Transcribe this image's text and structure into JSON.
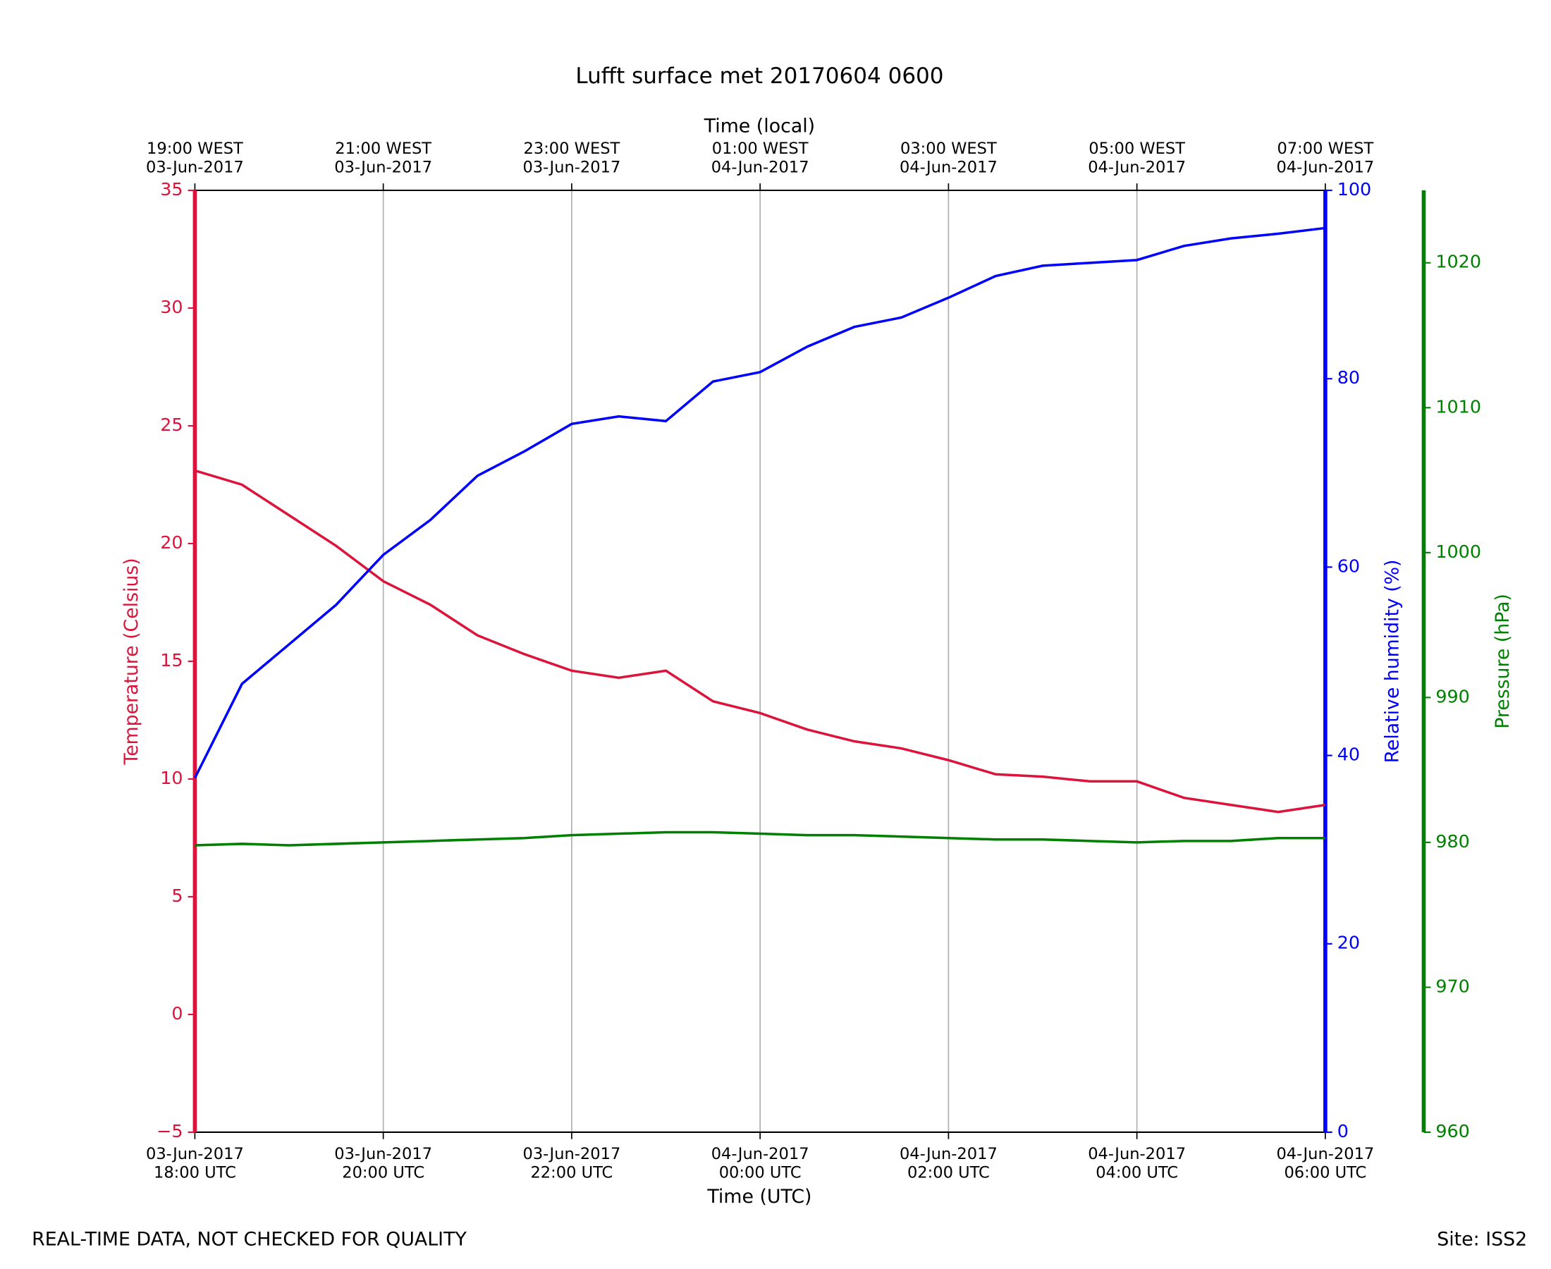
{
  "chart_data": {
    "type": "line",
    "title": "Lufft surface met 20170604 0600",
    "xlabel": "Time (UTC)",
    "x2label": "Time (local)",
    "ylabel": "Temperature (Celsius)",
    "y2label": "Relative humidity (%)",
    "y3label": "Pressure (hPa)",
    "footer_left": "REAL-TIME DATA, NOT CHECKED FOR QUALITY",
    "footer_right": "Site: ISS2",
    "grid": true,
    "x": [
      0,
      0.5,
      1,
      1.5,
      2,
      2.5,
      3,
      3.5,
      4,
      4.5,
      5,
      5.5,
      6,
      6.5,
      7,
      7.5,
      8,
      8.5,
      9,
      9.5,
      10,
      10.5,
      11,
      11.5,
      12
    ],
    "xlim": [
      0,
      12
    ],
    "xticks": [
      {
        "value": 0,
        "label": [
          "03-Jun-2017",
          "18:00 UTC"
        ]
      },
      {
        "value": 2,
        "label": [
          "03-Jun-2017",
          "20:00 UTC"
        ]
      },
      {
        "value": 4,
        "label": [
          "03-Jun-2017",
          "22:00 UTC"
        ]
      },
      {
        "value": 6,
        "label": [
          "04-Jun-2017",
          "00:00 UTC"
        ]
      },
      {
        "value": 8,
        "label": [
          "04-Jun-2017",
          "02:00 UTC"
        ]
      },
      {
        "value": 10,
        "label": [
          "04-Jun-2017",
          "04:00 UTC"
        ]
      },
      {
        "value": 12,
        "label": [
          "04-Jun-2017",
          "06:00 UTC"
        ]
      }
    ],
    "x2ticks": [
      {
        "value": 0,
        "label": [
          "19:00 WEST",
          "03-Jun-2017"
        ]
      },
      {
        "value": 2,
        "label": [
          "21:00 WEST",
          "03-Jun-2017"
        ]
      },
      {
        "value": 4,
        "label": [
          "23:00 WEST",
          "03-Jun-2017"
        ]
      },
      {
        "value": 6,
        "label": [
          "01:00 WEST",
          "04-Jun-2017"
        ]
      },
      {
        "value": 8,
        "label": [
          "03:00 WEST",
          "04-Jun-2017"
        ]
      },
      {
        "value": 10,
        "label": [
          "05:00 WEST",
          "04-Jun-2017"
        ]
      },
      {
        "value": 12,
        "label": [
          "07:00 WEST",
          "04-Jun-2017"
        ]
      }
    ],
    "ylim": [
      -5,
      35
    ],
    "yticks": [
      {
        "value": -5,
        "label": "−5"
      },
      0,
      5,
      10,
      15,
      20,
      25,
      30,
      35
    ],
    "y2lim": [
      0,
      100
    ],
    "y2ticks": [
      0,
      20,
      40,
      60,
      80,
      100
    ],
    "y3lim": [
      960,
      1025
    ],
    "y3ticks": [
      960,
      970,
      980,
      990,
      1000,
      1010,
      1020
    ],
    "series": [
      {
        "name": "Temperature",
        "axis": "y",
        "color": "#dc143c",
        "values": [
          23.1,
          22.5,
          21.2,
          19.9,
          18.4,
          17.4,
          16.1,
          15.3,
          14.6,
          14.3,
          14.6,
          13.3,
          12.8,
          12.1,
          11.6,
          11.3,
          10.8,
          10.2,
          10.1,
          9.9,
          9.9,
          9.2,
          8.9,
          8.6,
          8.9
        ]
      },
      {
        "name": "Relative humidity",
        "axis": "y2",
        "color": "#0000ff",
        "values": [
          37.6,
          47.6,
          51.8,
          56,
          61.3,
          65,
          69.7,
          72.3,
          75.2,
          76,
          75.5,
          79.7,
          80.7,
          83.4,
          85.5,
          86.5,
          88.6,
          90.9,
          92,
          92.3,
          92.6,
          94.1,
          94.9,
          95.4,
          96
        ]
      },
      {
        "name": "Pressure",
        "axis": "y3",
        "color": "#008000",
        "values": [
          979.8,
          979.9,
          979.8,
          979.9,
          980.0,
          980.1,
          980.2,
          980.3,
          980.5,
          980.6,
          980.7,
          980.7,
          980.6,
          980.5,
          980.5,
          980.4,
          980.3,
          980.2,
          980.2,
          980.1,
          980.0,
          980.1,
          980.1,
          980.3,
          980.3
        ]
      }
    ]
  }
}
